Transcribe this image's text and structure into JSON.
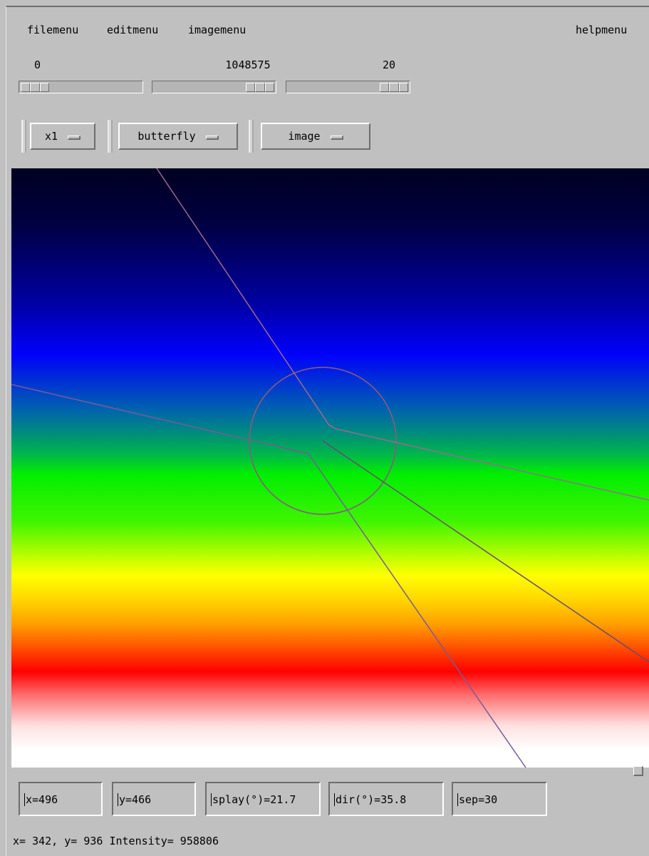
{
  "menubar": {
    "items": [
      "filemenu",
      "editmenu",
      "imagemenu"
    ],
    "help": "helpmenu"
  },
  "sliders": [
    {
      "label": "0",
      "value": 0,
      "max": 1048575
    },
    {
      "label": "1048575",
      "value": 1048575,
      "max": 1048575
    },
    {
      "label": "20",
      "value": 20,
      "max": 20
    }
  ],
  "options": [
    {
      "label": "x1"
    },
    {
      "label": "butterfly"
    },
    {
      "label": "image"
    }
  ],
  "canvas": {
    "colormap": [
      "#000020",
      "#0000fa",
      "#008a80",
      "#00ee00",
      "#ffff00",
      "#ff0000",
      "#ffffff"
    ],
    "overlay": {
      "type": "butterfly",
      "marker": "circle"
    }
  },
  "readouts": [
    {
      "text": "x=496"
    },
    {
      "text": "y=466"
    },
    {
      "text": "splay(°)=21.7"
    },
    {
      "text": "dir(°)=35.8"
    },
    {
      "text": "sep=30"
    }
  ],
  "status": {
    "text": "x= 342, y= 936 Intensity= 958806"
  }
}
